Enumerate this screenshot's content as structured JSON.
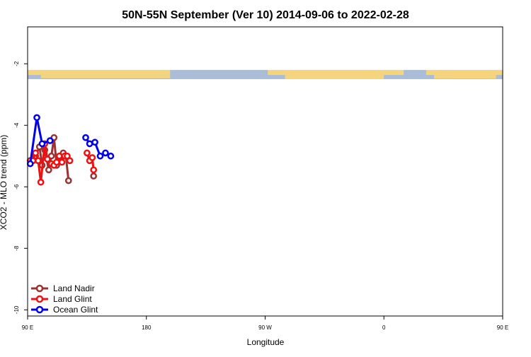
{
  "chart_data": {
    "type": "line",
    "title": "50N-55N September (Ver 10)   2014-09-06 to 2022-02-28",
    "xlabel": "Longitude",
    "ylabel": "XCO2 - MLO trend (ppm)",
    "xlim": [
      90,
      450
    ],
    "ylim": [
      -10.2,
      -0.8
    ],
    "xticks": [
      {
        "value": 90,
        "label": "90 E"
      },
      {
        "value": 180,
        "label": "180"
      },
      {
        "value": 270,
        "label": "90 W"
      },
      {
        "value": 360,
        "label": "0"
      },
      {
        "value": 450,
        "label": "90 E"
      },
      {
        "value": 540,
        "label": "180"
      }
    ],
    "yticks": [
      {
        "value": -2,
        "label": "-2"
      },
      {
        "value": -4,
        "label": "-4"
      },
      {
        "value": -6,
        "label": "-6"
      },
      {
        "value": -8,
        "label": "-8"
      },
      {
        "value": -10,
        "label": "-10"
      }
    ],
    "legend_position": "bottom-left",
    "map_strip": {
      "y_top": -2.2,
      "y_bottom": -2.5,
      "ocean_color": "#a9bcd8",
      "land_color": "#f5d47c"
    },
    "series": [
      {
        "name": "Land Nadir",
        "color": "#993333",
        "segments": [
          [
            [
              92,
              -5.15
            ],
            [
              96,
              -5.0
            ],
            [
              99,
              -4.7
            ],
            [
              101,
              -5.3
            ],
            [
              103,
              -4.8
            ],
            [
              106,
              -5.45
            ],
            [
              108,
              -5.0
            ],
            [
              110,
              -4.4
            ],
            [
              112,
              -5.3
            ],
            [
              115,
              -5.0
            ],
            [
              117,
              -4.9
            ],
            [
              119,
              -5.0
            ],
            [
              121,
              -5.8
            ]
          ],
          [
            [
              140,
              -5.65
            ]
          ]
        ]
      },
      {
        "name": "Land Glint",
        "color": "#ee1111",
        "segments": [
          [
            [
              92,
              -5.15
            ],
            [
              94,
              -5.15
            ],
            [
              96,
              -4.9
            ],
            [
              98,
              -5.15
            ],
            [
              100,
              -5.85
            ],
            [
              103,
              -4.6
            ],
            [
              105,
              -5.1
            ],
            [
              108,
              -5.25
            ],
            [
              110,
              -5.3
            ],
            [
              112,
              -5.2
            ],
            [
              114,
              -5.0
            ],
            [
              116,
              -5.2
            ],
            [
              118,
              -5.0
            ],
            [
              120,
              -5.0
            ],
            [
              122,
              -5.15
            ]
          ],
          [
            [
              135,
              -4.9
            ],
            [
              137,
              -5.15
            ],
            [
              139,
              -5.05
            ],
            [
              140,
              -5.45
            ]
          ]
        ]
      },
      {
        "name": "Ocean Glint",
        "color": "#0000ee",
        "segments": [
          [
            [
              92,
              -5.25
            ],
            [
              97,
              -3.75
            ],
            [
              101,
              -4.6
            ],
            [
              107,
              -4.5
            ]
          ],
          [
            [
              134,
              -4.4
            ],
            [
              137,
              -4.6
            ],
            [
              141,
              -4.55
            ],
            [
              145,
              -5.0
            ],
            [
              149,
              -4.9
            ],
            [
              153,
              -5.0
            ]
          ]
        ]
      }
    ]
  },
  "legend": {
    "items": [
      {
        "label": "Land Nadir"
      },
      {
        "label": "Land Glint"
      },
      {
        "label": "Ocean Glint"
      }
    ]
  }
}
